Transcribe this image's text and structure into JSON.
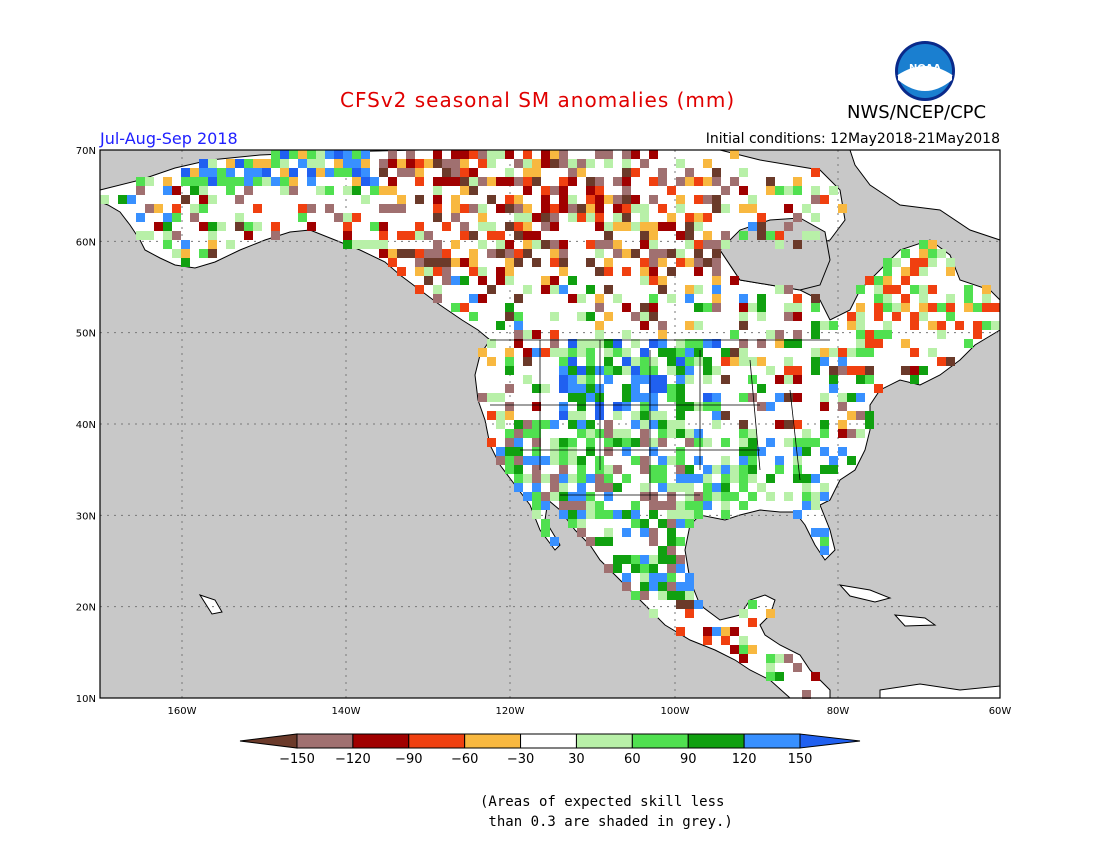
{
  "header": {
    "title": "CFSv2 seasonal SM anomalies (mm)",
    "agency": "NWS/NCEP/CPC",
    "period": "Jul-Aug-Sep 2018",
    "initial_conditions": "Initial conditions: 12May2018-21May2018",
    "logo_text": "NOAA"
  },
  "map": {
    "lat_ticks": [
      "70N",
      "60N",
      "50N",
      "40N",
      "30N",
      "20N",
      "10N"
    ],
    "lon_ticks": [
      "160W",
      "140W",
      "120W",
      "100W",
      "80W",
      "60W"
    ],
    "ocean_color": "#c8c8c8",
    "land_color": "#ffffff",
    "grid": true
  },
  "legend": {
    "labels": [
      "-150",
      "-120",
      "-90",
      "-60",
      "-30",
      "30",
      "60",
      "90",
      "120",
      "150"
    ],
    "colors": [
      "#6b3a2a",
      "#a07070",
      "#a00000",
      "#f04010",
      "#f8b840",
      "#ffffff",
      "#b8f0a8",
      "#50e050",
      "#10a010",
      "#3890ff",
      "#2060f0"
    ],
    "units": "mm"
  },
  "note": {
    "line1": "(Areas of expected skill less",
    "line2": " than 0.3 are shaded in grey.)"
  }
}
